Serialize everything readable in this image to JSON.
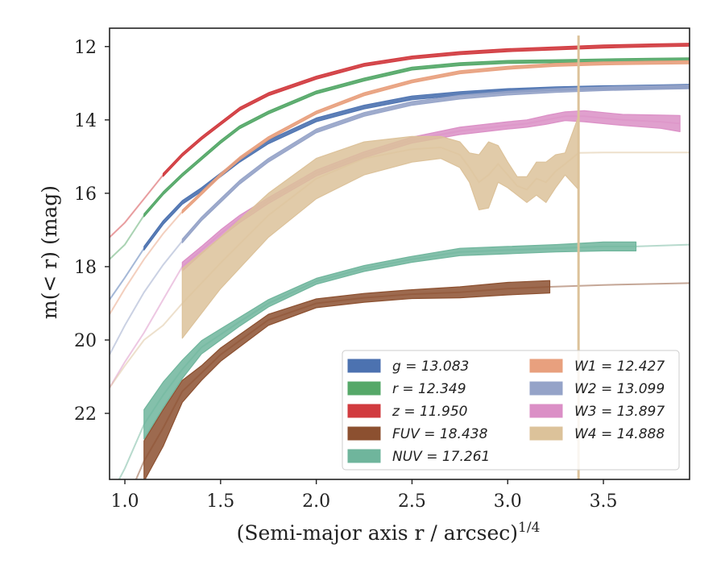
{
  "chart_data": {
    "type": "line",
    "xlabel": "(Semi-major axis r / arcsec)",
    "xlabel_exponent": "1/4",
    "ylabel": "m(< r) (mag)",
    "xlim": [
      0.92,
      3.95
    ],
    "ylim": [
      23.8,
      11.5
    ],
    "y_inverted": true,
    "xticks": [
      1.0,
      1.5,
      2.0,
      2.5,
      3.0,
      3.5
    ],
    "xtick_labels": [
      "1.0",
      "1.5",
      "2.0",
      "2.5",
      "3.0",
      "3.5"
    ],
    "yticks": [
      12,
      14,
      16,
      18,
      20,
      22
    ],
    "ytick_labels": [
      "12",
      "14",
      "16",
      "18",
      "20",
      "22"
    ],
    "grid": false,
    "legend_position": "lower-right",
    "legend": [
      {
        "label": "g = 13.083",
        "color": "#4c72b0"
      },
      {
        "label": "r = 12.349",
        "color": "#55a868"
      },
      {
        "label": "z = 11.950",
        "color": "#d13b3f"
      },
      {
        "label": "FUV = 18.438",
        "color": "#8c5030"
      },
      {
        "label": "NUV = 17.261",
        "color": "#6fb59c"
      },
      {
        "label": "W1 = 12.427",
        "color": "#e8a07e"
      },
      {
        "label": "W2 = 13.099",
        "color": "#95a3c8"
      },
      {
        "label": "W3 = 13.897",
        "color": "#db8fc6"
      },
      {
        "label": "W4 = 14.888",
        "color": "#dcc29a"
      }
    ],
    "series": [
      {
        "name": "g = 13.083",
        "color": "#4c72b0",
        "halfwidth": 0.05,
        "model_until": 1.1,
        "x": [
          0.92,
          1.0,
          1.1,
          1.2,
          1.3,
          1.4,
          1.5,
          1.6,
          1.75,
          2.0,
          2.25,
          2.5,
          2.75,
          3.0,
          3.25,
          3.5,
          3.75,
          3.95
        ],
        "y": [
          18.9,
          18.3,
          17.5,
          16.8,
          16.25,
          15.9,
          15.5,
          15.1,
          14.6,
          14.0,
          13.65,
          13.4,
          13.28,
          13.2,
          13.15,
          13.12,
          13.1,
          13.08
        ]
      },
      {
        "name": "r = 12.349",
        "color": "#55a868",
        "halfwidth": 0.04,
        "model_until": 1.1,
        "x": [
          0.92,
          1.0,
          1.1,
          1.2,
          1.3,
          1.4,
          1.5,
          1.6,
          1.75,
          2.0,
          2.25,
          2.5,
          2.75,
          3.0,
          3.25,
          3.5,
          3.75,
          3.95
        ],
        "y": [
          17.8,
          17.4,
          16.6,
          16.0,
          15.5,
          15.05,
          14.6,
          14.2,
          13.8,
          13.25,
          12.9,
          12.6,
          12.48,
          12.42,
          12.4,
          12.38,
          12.36,
          12.35
        ]
      },
      {
        "name": "z = 11.950",
        "color": "#d13b3f",
        "halfwidth": 0.04,
        "model_until": 1.15,
        "x": [
          0.92,
          1.0,
          1.1,
          1.2,
          1.3,
          1.4,
          1.5,
          1.6,
          1.75,
          2.0,
          2.25,
          2.5,
          2.75,
          3.0,
          3.25,
          3.5,
          3.75,
          3.95
        ],
        "y": [
          17.2,
          16.8,
          16.15,
          15.5,
          14.95,
          14.5,
          14.1,
          13.7,
          13.3,
          12.85,
          12.5,
          12.3,
          12.18,
          12.1,
          12.05,
          12.0,
          11.97,
          11.95
        ]
      },
      {
        "name": "FUV = 18.438",
        "color": "#8c5030",
        "halfwidth": 0.2,
        "model_until": 1.1,
        "data_until": 3.22,
        "x": [
          0.92,
          1.0,
          1.1,
          1.2,
          1.3,
          1.4,
          1.5,
          1.75,
          2.0,
          2.25,
          2.5,
          2.75,
          3.0,
          3.22,
          3.5,
          3.95
        ],
        "y": [
          25.5,
          24.5,
          23.3,
          22.4,
          21.4,
          20.9,
          20.4,
          19.45,
          19.0,
          18.85,
          18.75,
          18.7,
          18.6,
          18.55,
          18.5,
          18.45
        ],
        "halfwidths": [
          0.2,
          0.2,
          0.55,
          0.5,
          0.3,
          0.2,
          0.18,
          0.15,
          0.12,
          0.12,
          0.12,
          0.15,
          0.17,
          0.17,
          0.05,
          0.05
        ]
      },
      {
        "name": "NUV = 17.261",
        "color": "#6fb59c",
        "halfwidth": 0.15,
        "model_until": 1.1,
        "data_until": 3.67,
        "x": [
          0.92,
          1.0,
          1.1,
          1.2,
          1.3,
          1.4,
          1.5,
          1.6,
          1.75,
          2.0,
          2.25,
          2.5,
          2.75,
          3.0,
          3.25,
          3.5,
          3.67,
          3.95
        ],
        "y": [
          24.3,
          23.5,
          22.3,
          21.5,
          20.8,
          20.2,
          19.85,
          19.5,
          19.0,
          18.4,
          18.05,
          17.8,
          17.6,
          17.55,
          17.5,
          17.45,
          17.45,
          17.4
        ],
        "halfwidths": [
          0.05,
          0.05,
          0.4,
          0.35,
          0.25,
          0.18,
          0.15,
          0.12,
          0.1,
          0.08,
          0.08,
          0.08,
          0.1,
          0.1,
          0.1,
          0.12,
          0.12,
          0.04
        ]
      },
      {
        "name": "W1 = 12.427",
        "color": "#e8a07e",
        "halfwidth": 0.04,
        "model_until": 1.3,
        "x": [
          0.92,
          1.0,
          1.1,
          1.2,
          1.3,
          1.4,
          1.5,
          1.6,
          1.75,
          2.0,
          2.25,
          2.5,
          2.75,
          3.0,
          3.25,
          3.5,
          3.75,
          3.95
        ],
        "y": [
          19.3,
          18.6,
          17.8,
          17.1,
          16.5,
          16.0,
          15.5,
          15.05,
          14.5,
          13.8,
          13.3,
          12.95,
          12.7,
          12.58,
          12.5,
          12.46,
          12.44,
          12.43
        ]
      },
      {
        "name": "W2 = 13.099",
        "color": "#95a3c8",
        "halfwidth": 0.05,
        "model_until": 1.3,
        "x": [
          0.92,
          1.0,
          1.1,
          1.2,
          1.3,
          1.4,
          1.5,
          1.6,
          1.75,
          2.0,
          2.25,
          2.5,
          2.75,
          3.0,
          3.25,
          3.5,
          3.75,
          3.95
        ],
        "y": [
          20.4,
          19.6,
          18.7,
          17.95,
          17.3,
          16.7,
          16.2,
          15.7,
          15.1,
          14.3,
          13.85,
          13.55,
          13.38,
          13.27,
          13.2,
          13.15,
          13.12,
          13.1
        ]
      },
      {
        "name": "W3 = 13.897",
        "color": "#db8fc6",
        "halfwidth": 0.1,
        "model_until": 1.3,
        "x": [
          0.92,
          1.0,
          1.1,
          1.2,
          1.3,
          1.4,
          1.5,
          1.6,
          1.75,
          2.0,
          2.25,
          2.5,
          2.75,
          3.0,
          3.1,
          3.2,
          3.3,
          3.4,
          3.6,
          3.8,
          3.9
        ],
        "y": [
          21.3,
          20.6,
          19.8,
          18.9,
          18.0,
          17.55,
          17.1,
          16.7,
          16.2,
          15.45,
          14.95,
          14.55,
          14.3,
          14.15,
          14.1,
          14.0,
          13.9,
          13.9,
          14.0,
          14.05,
          14.1
        ],
        "halfwidths": [
          0.04,
          0.04,
          0.04,
          0.04,
          0.12,
          0.1,
          0.1,
          0.1,
          0.08,
          0.08,
          0.08,
          0.08,
          0.1,
          0.1,
          0.1,
          0.12,
          0.12,
          0.15,
          0.15,
          0.18,
          0.22
        ]
      },
      {
        "name": "W4 = 14.888",
        "color": "#dcc29a",
        "model_until": 1.3,
        "data_until": 3.37,
        "x": [
          0.92,
          1.0,
          1.1,
          1.2,
          1.3,
          1.5,
          1.75,
          2.0,
          2.25,
          2.5,
          2.65,
          2.75,
          2.8,
          2.85,
          2.9,
          2.95,
          3.0,
          3.05,
          3.1,
          3.15,
          3.2,
          3.25,
          3.3,
          3.37,
          3.5,
          3.95
        ],
        "y": [
          21.3,
          20.7,
          20.0,
          19.6,
          19.0,
          17.9,
          16.6,
          15.6,
          15.05,
          14.8,
          14.75,
          14.95,
          15.3,
          15.7,
          15.5,
          15.2,
          15.5,
          15.8,
          15.9,
          15.6,
          15.7,
          15.4,
          15.2,
          14.9,
          14.888,
          14.888
        ],
        "halfwidths": [
          0.04,
          0.04,
          0.04,
          0.04,
          0.95,
          0.7,
          0.6,
          0.55,
          0.45,
          0.35,
          0.3,
          0.35,
          0.4,
          0.75,
          0.9,
          0.5,
          0.35,
          0.25,
          0.35,
          0.45,
          0.55,
          0.45,
          0.3,
          1.0,
          0.02,
          0.02
        ]
      }
    ],
    "w4_spike_x": 3.37,
    "w4_spike_y": [
      11.7,
      23.8
    ]
  }
}
